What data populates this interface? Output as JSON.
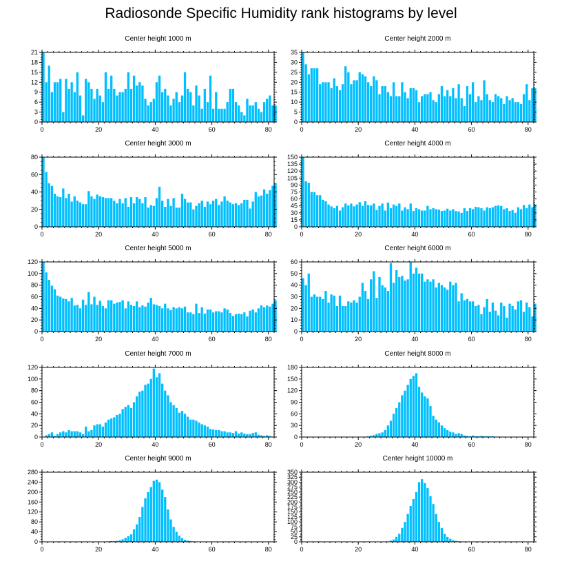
{
  "title": "Radiosonde Specific Humidity rank histograms by level",
  "colors": {
    "bar": "#00bfff",
    "bar_edge": "#ffffff",
    "axis": "#000000"
  },
  "chart_data": [
    {
      "type": "bar",
      "title": "Center height 1000 m",
      "xlim": [
        0,
        82
      ],
      "xticks": [
        0,
        20,
        40,
        60,
        80
      ],
      "ylim": [
        0,
        21
      ],
      "yticks": [
        0,
        3,
        6,
        9,
        12,
        15,
        18,
        21
      ],
      "values": [
        21,
        12,
        17,
        9,
        12,
        12,
        13,
        3,
        13,
        10,
        12,
        9,
        15,
        8,
        2,
        13,
        12,
        10,
        7,
        10,
        8,
        6,
        15,
        10,
        14,
        10,
        8,
        9,
        9,
        10,
        15,
        10,
        14,
        11,
        12,
        11,
        7,
        5,
        6,
        7,
        12,
        14,
        9,
        10,
        8,
        5,
        7,
        9,
        6,
        8,
        15,
        10,
        9,
        5,
        11,
        8,
        4,
        10,
        6,
        14,
        4,
        9,
        4,
        4,
        4,
        6,
        10,
        10,
        6,
        5,
        3,
        2,
        7,
        5,
        5,
        6,
        4,
        3,
        6,
        7,
        8,
        5,
        5
      ]
    },
    {
      "type": "bar",
      "title": "Center height 2000 m",
      "xlim": [
        0,
        82
      ],
      "xticks": [
        0,
        20,
        40,
        60,
        80
      ],
      "ylim": [
        0,
        35
      ],
      "yticks": [
        0,
        5,
        10,
        15,
        20,
        25,
        30,
        35
      ],
      "values": [
        35,
        29,
        24,
        27,
        27,
        27,
        19,
        20,
        20,
        20,
        17,
        22,
        18,
        16,
        19,
        28,
        25,
        19,
        21,
        21,
        25,
        24,
        23,
        20,
        18,
        23,
        21,
        14,
        18,
        18,
        15,
        13,
        20,
        13,
        13,
        20,
        15,
        12,
        17,
        17,
        16,
        10,
        13,
        14,
        14,
        15,
        11,
        10,
        14,
        18,
        13,
        16,
        13,
        17,
        12,
        19,
        12,
        8,
        18,
        14,
        20,
        10,
        13,
        11,
        21,
        14,
        11,
        10,
        14,
        13,
        12,
        9,
        13,
        11,
        12,
        10,
        10,
        9,
        14,
        19,
        11,
        17,
        17
      ]
    },
    {
      "type": "bar",
      "title": "Center height 3000 m",
      "xlim": [
        0,
        82
      ],
      "xticks": [
        0,
        20,
        40,
        60,
        80
      ],
      "ylim": [
        0,
        80
      ],
      "yticks": [
        0,
        20,
        40,
        60,
        80
      ],
      "values": [
        80,
        63,
        50,
        47,
        38,
        35,
        34,
        44,
        33,
        38,
        29,
        35,
        30,
        28,
        26,
        26,
        41,
        35,
        32,
        37,
        35,
        34,
        33,
        33,
        33,
        30,
        27,
        32,
        27,
        33,
        23,
        34,
        27,
        34,
        32,
        27,
        34,
        22,
        25,
        24,
        33,
        46,
        30,
        23,
        32,
        24,
        33,
        22,
        22,
        38,
        32,
        28,
        28,
        20,
        24,
        27,
        30,
        23,
        29,
        26,
        30,
        32,
        25,
        29,
        35,
        30,
        28,
        26,
        27,
        25,
        27,
        31,
        31,
        21,
        29,
        40,
        35,
        36,
        43,
        38,
        42,
        47,
        50
      ]
    },
    {
      "type": "bar",
      "title": "Center height 4000 m",
      "xlim": [
        0,
        82
      ],
      "xticks": [
        0,
        20,
        40,
        60,
        80
      ],
      "ylim": [
        0,
        150
      ],
      "yticks": [
        0,
        15,
        30,
        45,
        60,
        75,
        90,
        105,
        120,
        135,
        150
      ],
      "values": [
        150,
        98,
        95,
        75,
        75,
        68,
        68,
        58,
        55,
        48,
        44,
        40,
        45,
        35,
        42,
        50,
        46,
        50,
        44,
        48,
        53,
        45,
        55,
        47,
        46,
        50,
        36,
        45,
        50,
        35,
        52,
        40,
        48,
        45,
        50,
        35,
        42,
        38,
        50,
        34,
        40,
        38,
        35,
        35,
        45,
        38,
        40,
        38,
        37,
        34,
        35,
        39,
        35,
        38,
        34,
        33,
        30,
        40,
        34,
        40,
        38,
        43,
        42,
        40,
        35,
        42,
        40,
        42,
        45,
        46,
        45,
        38,
        40,
        34,
        36,
        30,
        42,
        38,
        47,
        40,
        48,
        42,
        48
      ]
    },
    {
      "type": "bar",
      "title": "Center height 5000 m",
      "xlim": [
        0,
        82
      ],
      "xticks": [
        0,
        20,
        40,
        60,
        80
      ],
      "ylim": [
        0,
        120
      ],
      "yticks": [
        0,
        20,
        40,
        60,
        80,
        100,
        120
      ],
      "values": [
        120,
        102,
        89,
        79,
        73,
        62,
        60,
        57,
        56,
        52,
        58,
        45,
        46,
        40,
        55,
        46,
        68,
        47,
        60,
        46,
        53,
        44,
        40,
        54,
        54,
        48,
        50,
        51,
        54,
        40,
        52,
        46,
        44,
        52,
        42,
        45,
        43,
        50,
        58,
        47,
        46,
        44,
        40,
        48,
        40,
        37,
        42,
        40,
        42,
        40,
        43,
        33,
        33,
        30,
        48,
        32,
        42,
        31,
        38,
        38,
        33,
        35,
        35,
        33,
        40,
        38,
        32,
        27,
        30,
        31,
        30,
        33,
        26,
        36,
        38,
        33,
        40,
        45,
        42,
        45,
        43,
        48,
        54
      ]
    },
    {
      "type": "bar",
      "title": "Center height 6000 m",
      "xlim": [
        0,
        82
      ],
      "xticks": [
        0,
        20,
        40,
        60,
        80
      ],
      "ylim": [
        0,
        60
      ],
      "yticks": [
        0,
        10,
        20,
        30,
        40,
        50,
        60
      ],
      "values": [
        46,
        40,
        50,
        30,
        32,
        30,
        30,
        28,
        35,
        25,
        32,
        31,
        22,
        31,
        22,
        22,
        26,
        25,
        27,
        25,
        30,
        42,
        35,
        28,
        45,
        52,
        29,
        47,
        40,
        38,
        35,
        59,
        42,
        53,
        47,
        48,
        44,
        45,
        60,
        50,
        55,
        50,
        50,
        43,
        45,
        43,
        45,
        38,
        42,
        40,
        38,
        36,
        43,
        40,
        42,
        26,
        33,
        27,
        28,
        26,
        26,
        22,
        23,
        15,
        21,
        28,
        17,
        25,
        18,
        14,
        25,
        22,
        12,
        24,
        22,
        19,
        26,
        27,
        17,
        25,
        21,
        13,
        24
      ]
    },
    {
      "type": "bar",
      "title": "Center height 7000 m",
      "xlim": [
        0,
        82
      ],
      "xticks": [
        0,
        20,
        40,
        60,
        80
      ],
      "ylim": [
        0,
        120
      ],
      "yticks": [
        0,
        20,
        40,
        60,
        80,
        100,
        120
      ],
      "values": [
        0,
        3,
        5,
        8,
        2,
        5,
        8,
        10,
        8,
        12,
        10,
        10,
        10,
        8,
        5,
        18,
        10,
        12,
        20,
        22,
        22,
        18,
        25,
        30,
        32,
        34,
        38,
        40,
        48,
        52,
        55,
        50,
        60,
        70,
        78,
        80,
        90,
        92,
        100,
        118,
        103,
        110,
        92,
        80,
        72,
        60,
        55,
        50,
        42,
        45,
        40,
        35,
        30,
        30,
        28,
        25,
        22,
        20,
        18,
        14,
        13,
        12,
        12,
        10,
        10,
        8,
        8,
        7,
        10,
        6,
        8,
        6,
        5,
        5,
        7,
        8,
        4,
        3,
        2,
        3,
        2,
        0,
        0
      ]
    },
    {
      "type": "bar",
      "title": "Center height 8000 m",
      "xlim": [
        0,
        82
      ],
      "xticks": [
        0,
        20,
        40,
        60,
        80
      ],
      "ylim": [
        0,
        180
      ],
      "yticks": [
        0,
        30,
        60,
        90,
        120,
        150,
        180
      ],
      "values": [
        0,
        0,
        0,
        0,
        0,
        0,
        0,
        0,
        0,
        0,
        0,
        0,
        0,
        0,
        0,
        0,
        0,
        0,
        0,
        0,
        0,
        0,
        1,
        2,
        3,
        5,
        8,
        10,
        12,
        18,
        30,
        42,
        60,
        75,
        90,
        108,
        120,
        135,
        150,
        158,
        165,
        130,
        115,
        105,
        100,
        80,
        55,
        45,
        38,
        30,
        23,
        18,
        14,
        12,
        8,
        10,
        8,
        4,
        3,
        2,
        4,
        2,
        2,
        3,
        2,
        2,
        2,
        2,
        1,
        1,
        1,
        1,
        0,
        0,
        0,
        0,
        0,
        0,
        0,
        0,
        0,
        0,
        0
      ]
    },
    {
      "type": "bar",
      "title": "Center height 9000 m",
      "xlim": [
        0,
        82
      ],
      "xticks": [
        0,
        20,
        40,
        60,
        80
      ],
      "ylim": [
        0,
        280
      ],
      "yticks": [
        0,
        40,
        80,
        120,
        160,
        200,
        240,
        280
      ],
      "values": [
        0,
        0,
        0,
        0,
        0,
        0,
        0,
        0,
        0,
        0,
        0,
        0,
        0,
        0,
        0,
        0,
        0,
        0,
        0,
        0,
        0,
        0,
        0,
        2,
        3,
        3,
        4,
        6,
        10,
        16,
        23,
        30,
        50,
        70,
        100,
        140,
        175,
        200,
        220,
        245,
        250,
        240,
        210,
        180,
        130,
        90,
        60,
        40,
        25,
        15,
        8,
        5,
        3,
        2,
        1,
        1,
        1,
        0,
        0,
        0,
        0,
        0,
        0,
        0,
        0,
        0,
        0,
        0,
        0,
        0,
        0,
        0,
        0,
        0,
        0,
        0,
        0,
        0,
        0,
        0,
        2,
        0,
        0
      ]
    },
    {
      "type": "bar",
      "title": "Center height 10000 m",
      "xlim": [
        0,
        82
      ],
      "xticks": [
        0,
        20,
        40,
        60,
        80
      ],
      "ylim": [
        0,
        350
      ],
      "yticks": [
        0,
        25,
        50,
        75,
        100,
        125,
        150,
        175,
        200,
        225,
        250,
        275,
        300,
        325,
        350
      ],
      "values": [
        0,
        0,
        0,
        0,
        0,
        0,
        0,
        0,
        0,
        0,
        0,
        0,
        0,
        0,
        0,
        0,
        0,
        0,
        0,
        0,
        0,
        0,
        0,
        0,
        0,
        0,
        0,
        0,
        0,
        0,
        2,
        6,
        12,
        25,
        40,
        70,
        100,
        140,
        180,
        215,
        250,
        300,
        315,
        295,
        270,
        230,
        190,
        140,
        100,
        70,
        40,
        25,
        15,
        8,
        5,
        3,
        2,
        1,
        1,
        0,
        0,
        0,
        0,
        0,
        0,
        0,
        0,
        0,
        0,
        0,
        0,
        0,
        0,
        0,
        0,
        0,
        0,
        0,
        0,
        0,
        0,
        0,
        0
      ]
    }
  ]
}
